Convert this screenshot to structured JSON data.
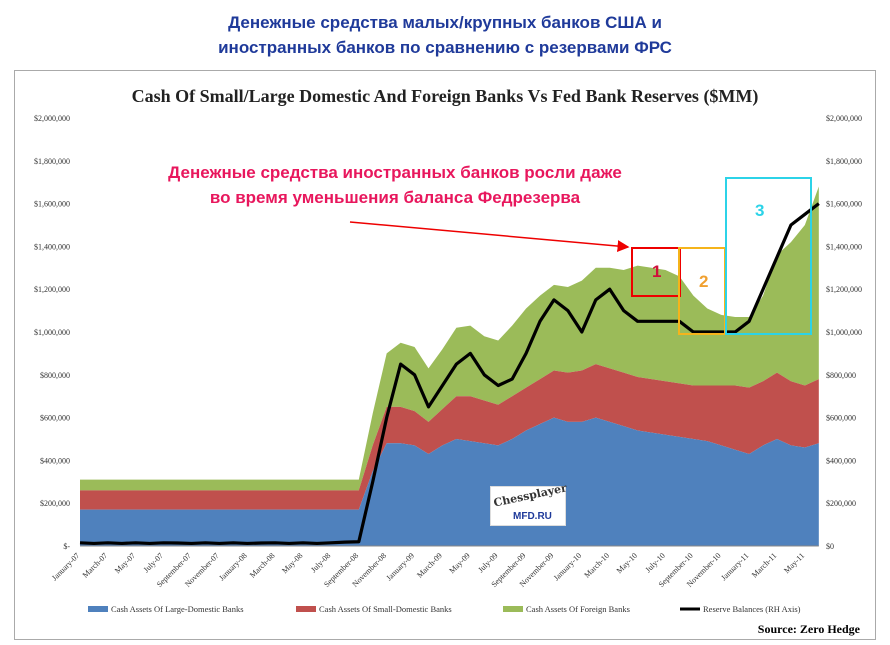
{
  "heading": {
    "line1": "Денежные средства малых/крупных банков США и",
    "line2": "иностранных банков по сравнению с резервами ФРС"
  },
  "annotation": {
    "line1": "Денежные средства иностранных банков росли даже",
    "line2": "во время уменьшения баланса Федрезерва",
    "box1": "1",
    "box2": "2",
    "box3": "3"
  },
  "logo": {
    "top": "Chessplayer",
    "bottom": "MFD.RU"
  },
  "source": "Source: Zero Hedge",
  "chart_data": {
    "type": "area",
    "title": "Cash Of Small/Large Domestic And Foreign Banks Vs Fed Bank Reserves ($MM)",
    "stacked": true,
    "units": "thousands of $MM",
    "ylim": [
      0,
      2000000
    ],
    "yticks_left": [
      "$-",
      "$200,000",
      "$400,000",
      "$600,000",
      "$800,000",
      "$1,000,000",
      "$1,200,000",
      "$1,400,000",
      "$1,600,000",
      "$1,800,000",
      "$2,000,000"
    ],
    "yticks_right": [
      "$0",
      "$200,000",
      "$400,000",
      "$600,000",
      "$800,000",
      "$1,000,000",
      "$1,200,000",
      "$1,400,000",
      "$1,600,000",
      "$1,800,000",
      "$2,000,000"
    ],
    "xticks": [
      "January-07",
      "March-07",
      "May-07",
      "July-07",
      "September-07",
      "November-07",
      "January-08",
      "March-08",
      "May-08",
      "July-08",
      "September-08",
      "November-08",
      "January-09",
      "March-09",
      "May-09",
      "July-09",
      "September-09",
      "November-09",
      "January-10",
      "March-10",
      "May-10",
      "July-10",
      "September-10",
      "November-10",
      "January-11",
      "March-11",
      "May-11"
    ],
    "x_start": "January-07",
    "x_step": "month",
    "legend_position": "bottom",
    "colors": {
      "large": "#4f81bd",
      "small": "#c0504d",
      "foreign": "#9bbb59",
      "reserve": "#000000"
    },
    "series": [
      {
        "name": "Cash Assets Of Large-Domestic Banks",
        "values": [
          170,
          170,
          170,
          170,
          170,
          170,
          170,
          170,
          170,
          170,
          170,
          170,
          170,
          170,
          170,
          170,
          170,
          170,
          170,
          170,
          170,
          350,
          480,
          480,
          470,
          430,
          470,
          500,
          490,
          480,
          470,
          500,
          540,
          570,
          600,
          580,
          580,
          600,
          580,
          560,
          540,
          530,
          520,
          510,
          500,
          490,
          470,
          450,
          430,
          470,
          500,
          470,
          460,
          480
        ]
      },
      {
        "name": "Cash Assets Of Small-Domestic Banks",
        "values": [
          90,
          90,
          90,
          90,
          90,
          90,
          90,
          90,
          90,
          90,
          90,
          90,
          90,
          90,
          90,
          90,
          90,
          90,
          90,
          90,
          90,
          120,
          170,
          170,
          160,
          150,
          170,
          200,
          210,
          200,
          190,
          200,
          200,
          210,
          220,
          230,
          240,
          250,
          250,
          250,
          250,
          250,
          250,
          250,
          250,
          260,
          280,
          300,
          310,
          300,
          310,
          300,
          290,
          300
        ]
      },
      {
        "name": "Cash Assets Of Foreign Banks",
        "values": [
          50,
          50,
          50,
          50,
          50,
          50,
          50,
          50,
          50,
          50,
          50,
          50,
          50,
          50,
          50,
          50,
          50,
          50,
          50,
          50,
          50,
          150,
          250,
          300,
          300,
          250,
          280,
          320,
          330,
          300,
          300,
          330,
          370,
          390,
          400,
          400,
          420,
          450,
          470,
          480,
          520,
          520,
          520,
          500,
          420,
          360,
          330,
          320,
          330,
          400,
          550,
          650,
          750,
          900
        ]
      },
      {
        "name": "Reserve Balances (RH Axis)",
        "values": [
          15,
          12,
          15,
          12,
          15,
          12,
          15,
          14,
          12,
          15,
          12,
          15,
          12,
          14,
          15,
          12,
          15,
          12,
          15,
          18,
          20,
          300,
          600,
          850,
          800,
          650,
          750,
          850,
          900,
          800,
          750,
          780,
          900,
          1050,
          1150,
          1100,
          1000,
          1150,
          1200,
          1100,
          1050,
          1050,
          1050,
          1050,
          1000,
          1000,
          1000,
          1000,
          1050,
          1200,
          1350,
          1500,
          1550,
          1600
        ]
      }
    ]
  }
}
